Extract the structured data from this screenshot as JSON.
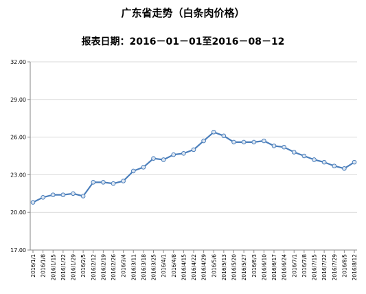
{
  "chart_data": {
    "type": "line",
    "title": "广东省走势（白条肉价格）",
    "subtitle": "报表日期：2016－01－01至2016－08－12",
    "xlabel": "",
    "ylabel": "",
    "ylim": [
      17.0,
      32.0
    ],
    "yticks": [
      "17.00",
      "20.00",
      "23.00",
      "26.00",
      "29.00",
      "32.00"
    ],
    "grid": true,
    "legend": "none",
    "line_color": "#4a7ebb",
    "marker_fill": "#dce6f2",
    "categories": [
      "2016/1/1",
      "2016/1/8",
      "2016/1/15",
      "2016/1/22",
      "2016/1/29",
      "2016/2/5",
      "2016/2/12",
      "2016/2/19",
      "2016/2/26",
      "2016/3/4",
      "2016/3/11",
      "2016/3/18",
      "2016/3/25",
      "2016/4/1",
      "2016/4/8",
      "2016/4/15",
      "2016/4/22",
      "2016/4/29",
      "2016/5/6",
      "2016/5/13",
      "2016/5/20",
      "2016/5/27",
      "2016/6/3",
      "2016/6/10",
      "2016/6/17",
      "2016/6/24",
      "2016/7/1",
      "2016/7/8",
      "2016/7/15",
      "2016/7/22",
      "2016/7/29",
      "2016/8/5",
      "2016/8/12"
    ],
    "values": [
      20.8,
      21.2,
      21.4,
      21.4,
      21.5,
      21.3,
      22.4,
      22.4,
      22.3,
      22.5,
      23.3,
      23.6,
      24.3,
      24.2,
      24.6,
      24.7,
      25.0,
      25.7,
      26.4,
      26.1,
      25.6,
      25.6,
      25.6,
      25.7,
      25.3,
      25.2,
      24.8,
      24.5,
      24.2,
      24.0,
      23.7,
      23.5,
      24.0
    ]
  }
}
